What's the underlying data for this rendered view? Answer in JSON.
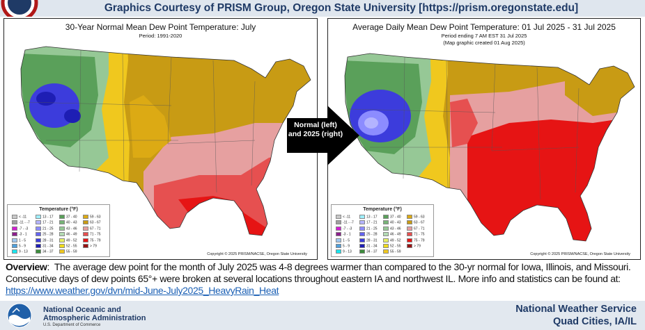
{
  "header": {
    "banner": "Graphics Courtesy of PRISM Group, Oregon State University [https://prism.oregonstate.edu]"
  },
  "maps": [
    {
      "title": "30-Year Normal Mean Dew Point Temperature: July",
      "subtitle1": "Period: 1991-2020",
      "subtitle2": "",
      "copyright": "Copyright © 2025 PRISM/NACSE, Oregon State University"
    },
    {
      "title": "Average Daily Mean Dew Point Temperature: 01 Jul 2025 - 31 Jul 2025",
      "subtitle1": "Period ending 7 AM EST 31 Jul 2025",
      "subtitle2": "(Map graphic created 01 Aug 2025)",
      "copyright": "Copyright © 2025 PRISM/NACSE, Oregon State University"
    }
  ],
  "legend": {
    "title": "Temperature (°F)",
    "columns": [
      [
        {
          "label": "< -11",
          "color": "#c8c8c8"
        },
        {
          "label": "-11 - -7",
          "color": "#a0a0a0"
        },
        {
          "label": "-7 - -3",
          "color": "#d21ed2"
        },
        {
          "label": "-3 - 1",
          "color": "#8c1e8c"
        },
        {
          "label": "1 - 5",
          "color": "#a0c8f0"
        },
        {
          "label": "5 - 9",
          "color": "#50a0dc"
        },
        {
          "label": "9 - 13",
          "color": "#19e6f0"
        }
      ],
      [
        {
          "label": "13 - 17",
          "color": "#a0f0ff"
        },
        {
          "label": "17 - 21",
          "color": "#b4b4ff"
        },
        {
          "label": "21 - 25",
          "color": "#8c8cff"
        },
        {
          "label": "25 - 28",
          "color": "#6464f0"
        },
        {
          "label": "28 - 31",
          "color": "#3c3cdc"
        },
        {
          "label": "31 - 34",
          "color": "#1e1eb4"
        },
        {
          "label": "34 - 37",
          "color": "#3c8c3c"
        }
      ],
      [
        {
          "label": "37 - 40",
          "color": "#5aa05a"
        },
        {
          "label": "40 - 43",
          "color": "#78b478"
        },
        {
          "label": "43 - 46",
          "color": "#96c896"
        },
        {
          "label": "46 - 49",
          "color": "#b4dcb4"
        },
        {
          "label": "49 - 52",
          "color": "#e6f064"
        },
        {
          "label": "52 - 55",
          "color": "#f0dc1e"
        },
        {
          "label": "55 - 59",
          "color": "#f0c81e"
        }
      ],
      [
        {
          "label": "59 - 63",
          "color": "#dcaa14"
        },
        {
          "label": "63 - 67",
          "color": "#c89b14"
        },
        {
          "label": "67 - 71",
          "color": "#e6a0a0"
        },
        {
          "label": "71 - 75",
          "color": "#e65050"
        },
        {
          "label": "75 - 79",
          "color": "#e61414"
        },
        {
          "label": "> 79",
          "color": "#961414"
        }
      ]
    ]
  },
  "arrow_label": "Normal (left) and 2025 (right)",
  "overview": {
    "label": "Overview",
    "text": "The average dew point for the month of July 2025 was 4-8 degrees warmer than compared to the 30-yr normal for Iowa, Illinois, and Missouri. Consecutive days of dew points 65°+ were broken at several locations throughout eastern IA and northwest IL.  More info and statistics can be found at:",
    "link": "https://www.weather.gov/dvn/mid-June-July2025_HeavyRain_Heat"
  },
  "footer": {
    "noaa_line1": "National Oceanic and",
    "noaa_line2": "Atmospheric Administration",
    "noaa_line3": "U.S. Department of Commerce",
    "nws_line1": "National Weather Service",
    "nws_line2": "Quad Cities, IA/IL"
  },
  "colors": {
    "banner_text": "#1f3a66",
    "link": "#1a5fb4"
  }
}
